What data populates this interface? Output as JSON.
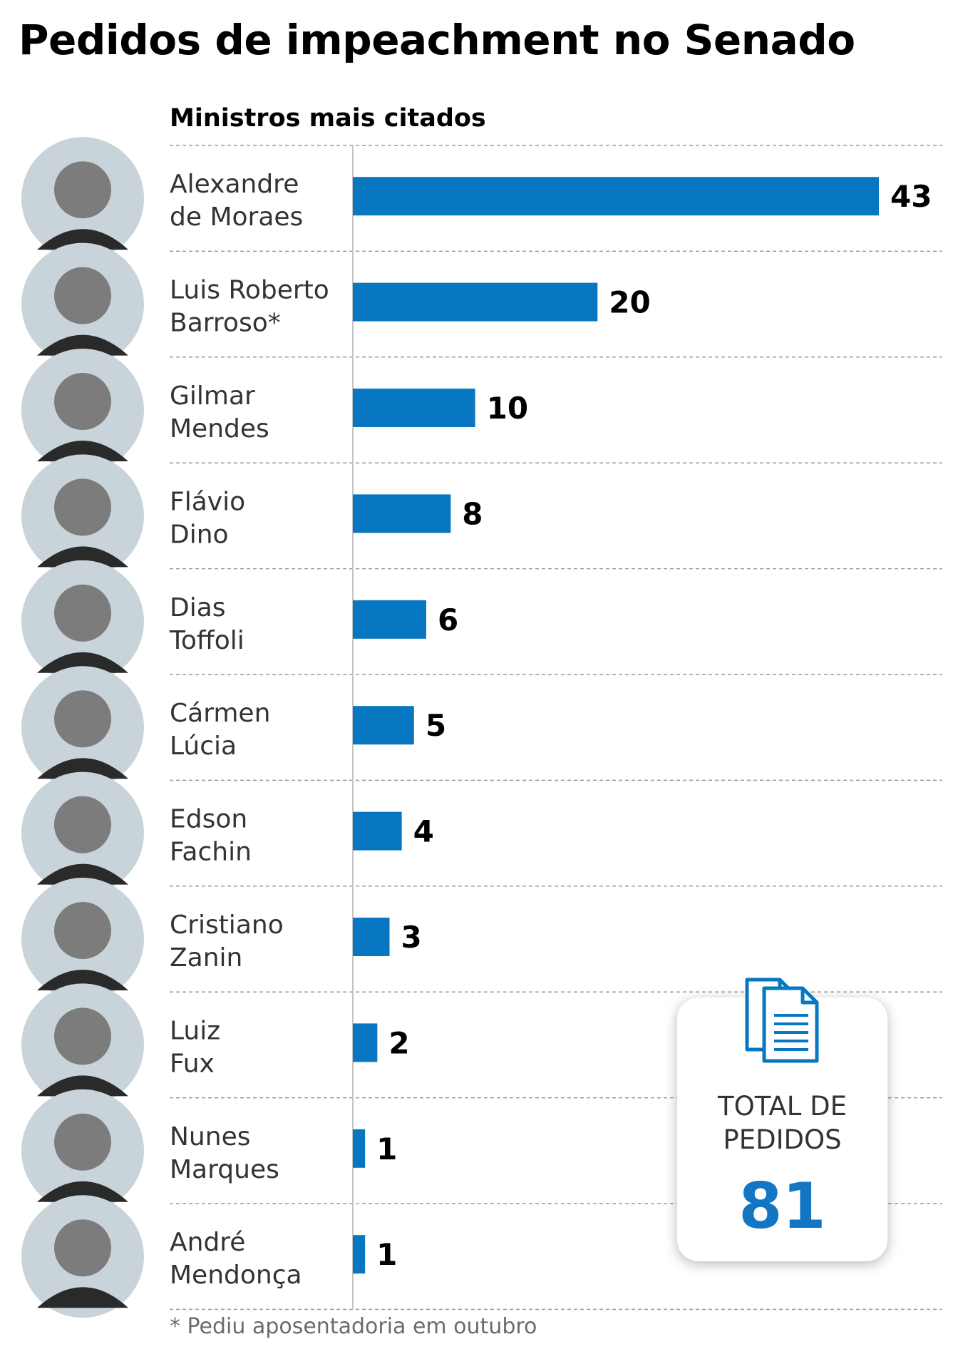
{
  "title": "Pedidos de impeachment no Senado",
  "subtitle": "Ministros mais citados",
  "footnote": "* Pediu aposentadoria em outubro",
  "total": {
    "label": "TOTAL DE PEDIDOS",
    "value": "81",
    "icon": "documents-icon"
  },
  "colors": {
    "bar": "#0877c2",
    "total_value": "#1276c2",
    "photo_bg": "#c9d3da"
  },
  "chart_data": {
    "type": "bar",
    "orientation": "horizontal",
    "title": "Pedidos de impeachment no Senado",
    "subtitle": "Ministros mais citados",
    "categories": [
      [
        "Alexandre",
        "de Moraes"
      ],
      [
        "Luis Roberto",
        "Barroso*"
      ],
      [
        "Gilmar",
        "Mendes"
      ],
      [
        "Flávio",
        "Dino"
      ],
      [
        "Dias",
        "Toffoli"
      ],
      [
        "Cármen",
        "Lúcia"
      ],
      [
        "Edson",
        "Fachin"
      ],
      [
        "Cristiano",
        "Zanin"
      ],
      [
        "Luiz",
        "Fux"
      ],
      [
        "Nunes",
        "Marques"
      ],
      [
        "André",
        "Mendonça"
      ]
    ],
    "values": [
      43,
      20,
      10,
      8,
      6,
      5,
      4,
      3,
      2,
      1,
      1
    ],
    "xlim": [
      0,
      43
    ],
    "grid": true,
    "data_labels": true
  }
}
